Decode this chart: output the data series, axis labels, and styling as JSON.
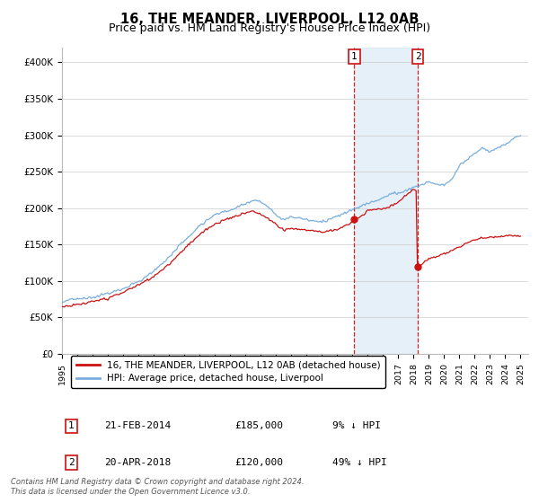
{
  "title": "16, THE MEANDER, LIVERPOOL, L12 0AB",
  "subtitle": "Price paid vs. HM Land Registry's House Price Index (HPI)",
  "ylim": [
    0,
    420000
  ],
  "yticks": [
    0,
    50000,
    100000,
    150000,
    200000,
    250000,
    300000,
    350000,
    400000
  ],
  "ytick_labels": [
    "£0",
    "£50K",
    "£100K",
    "£150K",
    "£200K",
    "£250K",
    "£300K",
    "£350K",
    "£400K"
  ],
  "hpi_color": "#7aaedc",
  "price_color": "#cc1111",
  "bg_shade_color": "#daeaf7",
  "marker1_date": 2014.12,
  "marker2_date": 2018.29,
  "marker1_price": 185000,
  "marker2_price": 120000,
  "legend_label1": "16, THE MEANDER, LIVERPOOL, L12 0AB (detached house)",
  "legend_label2": "HPI: Average price, detached house, Liverpool",
  "annotation1_date": "21-FEB-2014",
  "annotation1_price": "£185,000",
  "annotation1_hpi": "9% ↓ HPI",
  "annotation2_date": "20-APR-2018",
  "annotation2_price": "£120,000",
  "annotation2_hpi": "49% ↓ HPI",
  "footer": "Contains HM Land Registry data © Crown copyright and database right 2024.\nThis data is licensed under the Open Government Licence v3.0.",
  "title_fontsize": 10.5,
  "subtitle_fontsize": 9
}
